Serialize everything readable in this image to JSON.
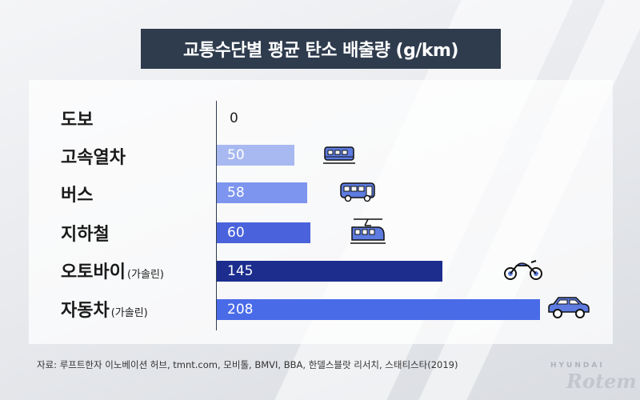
{
  "chart_data": {
    "type": "bar",
    "orientation": "horizontal",
    "title": "교통수단별 평균 탄소 배출량 (g/km)",
    "categories": [
      {
        "label": "도보",
        "sub": ""
      },
      {
        "label": "고속열차",
        "sub": ""
      },
      {
        "label": "버스",
        "sub": ""
      },
      {
        "label": "지하철",
        "sub": ""
      },
      {
        "label": "오토바이",
        "sub": "(가솔린)"
      },
      {
        "label": "자동차",
        "sub": "(가솔린)"
      }
    ],
    "values": [
      0,
      50,
      58,
      60,
      145,
      208
    ],
    "value_labels": [
      "0",
      "50",
      "58",
      "60",
      "145",
      "208"
    ],
    "bar_colors": [
      "#ffffff",
      "#a8b8f0",
      "#7d95ee",
      "#4a63dc",
      "#1c2d8e",
      "#4a6be8"
    ],
    "icons": [
      "",
      "train-icon",
      "bus-icon",
      "subway-icon",
      "motorcycle-icon",
      "car-icon"
    ],
    "xlim": [
      0,
      208
    ],
    "grid": false
  },
  "source": "자료: 루프트한자 이노베이션 허브, tmnt.com, 모비톨, BMVI, BBA, 한델스블랏 리서치, 스태티스타(2019)",
  "logo": {
    "top": "HYUNDAI",
    "main": "Rotem"
  }
}
